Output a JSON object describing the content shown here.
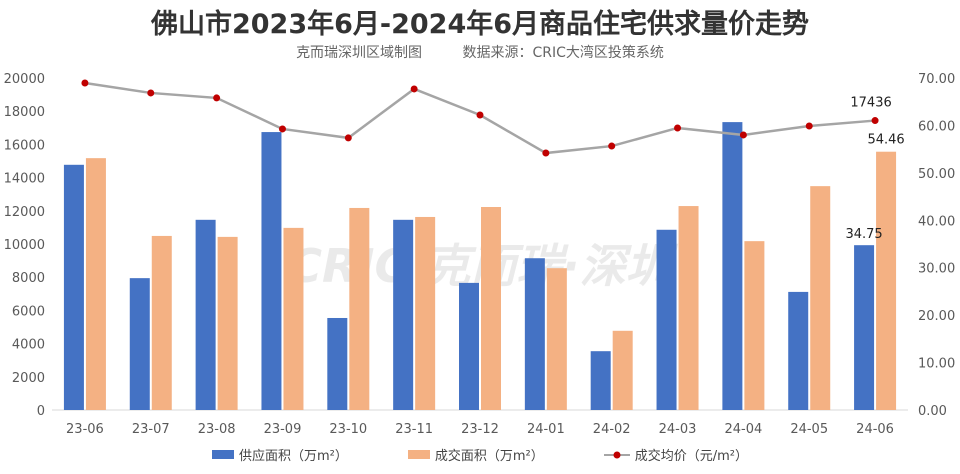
{
  "title": "佛山市2023年6月-2024年6月商品住宅供求量价走势",
  "subtitle_left": "克而瑞深圳区域制图",
  "subtitle_right": "数据来源：CRIC大湾区投策系统",
  "watermark": "CRIC 克而瑞·深圳",
  "colors": {
    "supply": "#4472C4",
    "deal": "#F4B183",
    "price_line": "#A5A5A5",
    "price_marker": "#C00000"
  },
  "chart_data": {
    "type": "bar+line",
    "categories": [
      "23-06",
      "23-07",
      "23-08",
      "23-09",
      "23-10",
      "23-11",
      "23-12",
      "24-01",
      "24-02",
      "24-03",
      "24-04",
      "24-05",
      "24-06"
    ],
    "series": [
      {
        "name": "供应面积（万m²）",
        "type": "bar",
        "axis": "right",
        "values": [
          51.7,
          27.8,
          40.1,
          58.6,
          19.4,
          40.1,
          26.8,
          32.0,
          12.4,
          38.0,
          60.7,
          24.9,
          34.75
        ]
      },
      {
        "name": "成交面积（万m²）",
        "type": "bar",
        "axis": "right",
        "values": [
          53.1,
          36.7,
          36.5,
          38.4,
          42.6,
          40.7,
          42.8,
          29.9,
          16.7,
          43.0,
          35.6,
          47.2,
          54.46
        ]
      },
      {
        "name": "成交均价（元/m²）",
        "type": "line",
        "axis": "left",
        "values": [
          19700,
          19100,
          18800,
          16930,
          16390,
          19340,
          17770,
          15480,
          15900,
          16990,
          16570,
          17110,
          17436
        ]
      }
    ],
    "data_labels": [
      {
        "series": 0,
        "index": 12,
        "text": "34.75"
      },
      {
        "series": 1,
        "index": 12,
        "text": "54.46"
      },
      {
        "series": 2,
        "index": 12,
        "text": "17436"
      }
    ],
    "left_axis": {
      "ylim": [
        0,
        20000
      ],
      "ticks": [
        "0",
        "2000",
        "4000",
        "6000",
        "8000",
        "10000",
        "12000",
        "14000",
        "16000",
        "18000",
        "20000"
      ]
    },
    "right_axis": {
      "ylim": [
        0,
        70
      ],
      "ticks": [
        "0.00",
        "10.00",
        "20.00",
        "30.00",
        "40.00",
        "50.00",
        "60.00",
        "70.00"
      ]
    },
    "grid": false,
    "legend": "bottom"
  }
}
